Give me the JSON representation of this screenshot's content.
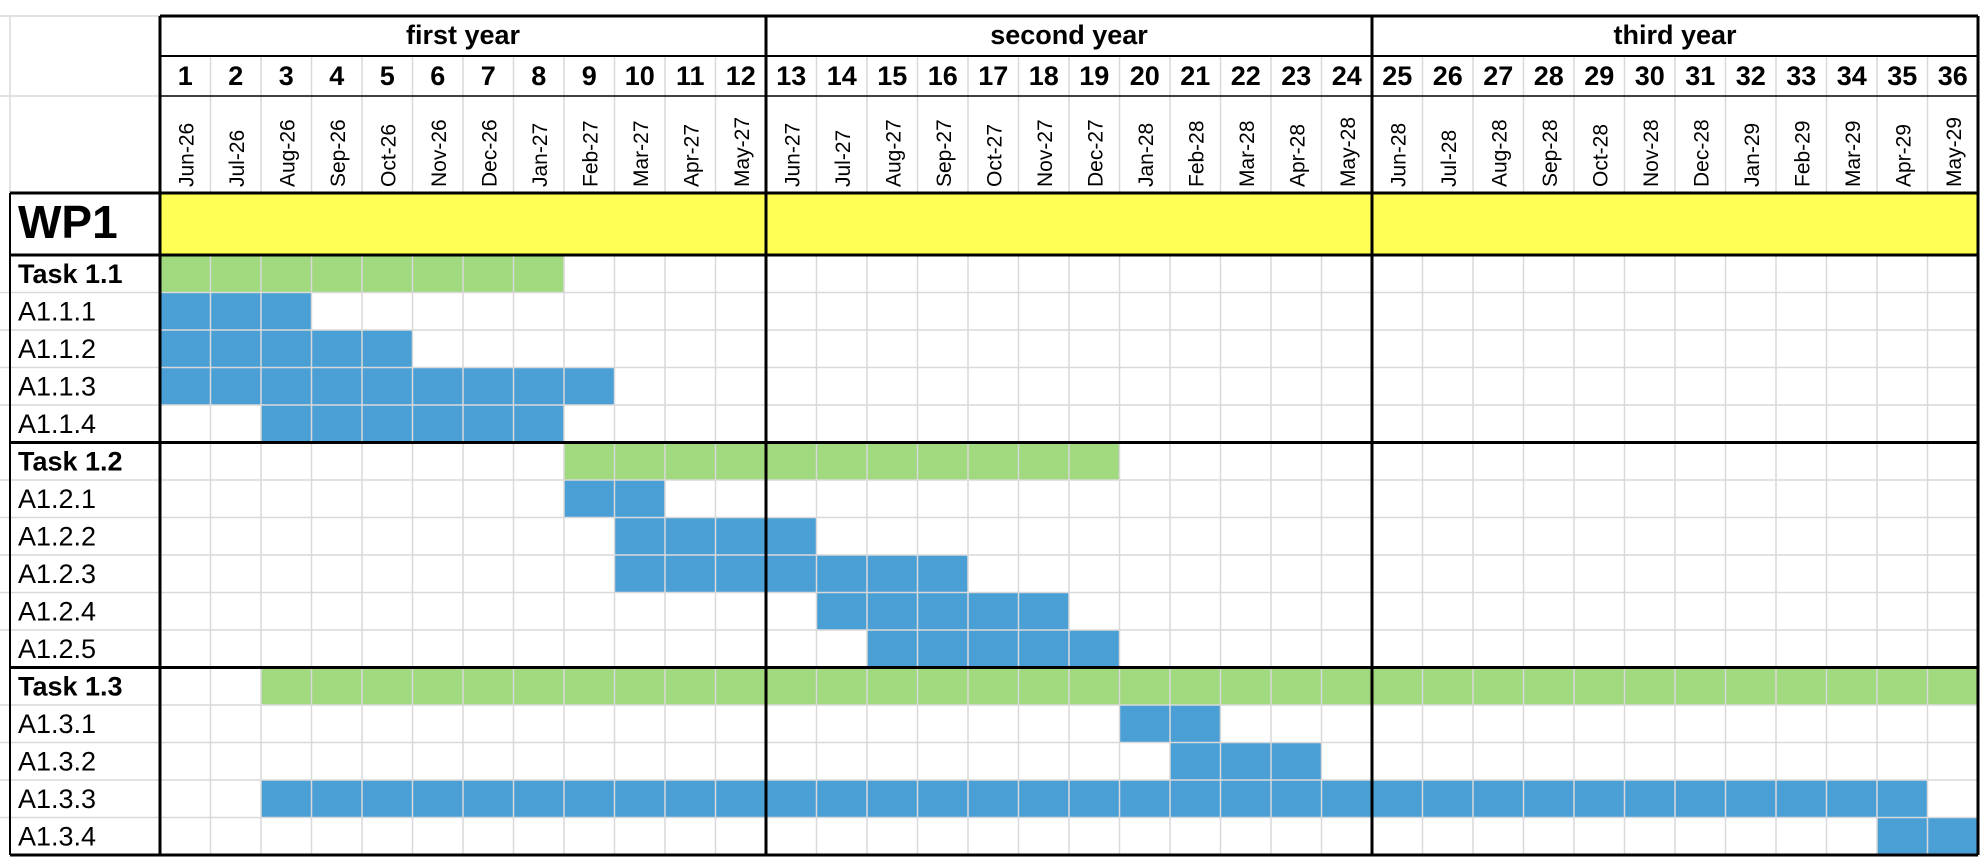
{
  "chart_data": {
    "type": "gantt",
    "years": [
      "first year",
      "second year",
      "third year"
    ],
    "month_numbers": [
      "1",
      "2",
      "3",
      "4",
      "5",
      "6",
      "7",
      "8",
      "9",
      "10",
      "11",
      "12",
      "13",
      "14",
      "15",
      "16",
      "17",
      "18",
      "19",
      "20",
      "21",
      "22",
      "23",
      "24",
      "25",
      "26",
      "27",
      "28",
      "29",
      "30",
      "31",
      "32",
      "33",
      "34",
      "35",
      "36"
    ],
    "month_labels": [
      "Jun-26",
      "Jul-26",
      "Aug-26",
      "Sep-26",
      "Oct-26",
      "Nov-26",
      "Dec-26",
      "Jan-27",
      "Feb-27",
      "Mar-27",
      "Apr-27",
      "May-27",
      "Jun-27",
      "Jul-27",
      "Aug-27",
      "Sep-27",
      "Oct-27",
      "Nov-27",
      "Dec-27",
      "Jan-28",
      "Feb-28",
      "Mar-28",
      "Apr-28",
      "May-28",
      "Jun-28",
      "Jul-28",
      "Aug-28",
      "Sep-28",
      "Oct-28",
      "Nov-28",
      "Dec-28",
      "Jan-29",
      "Feb-29",
      "Mar-29",
      "Apr-29",
      "May-29"
    ],
    "work_package": {
      "label": "WP1",
      "start": 1,
      "end": 36,
      "color": "#ffff55"
    },
    "groups": [
      {
        "task": {
          "label": "Task 1.1",
          "start": 1,
          "end": 8
        },
        "activities": [
          {
            "label": "A1.1.1",
            "start": 1,
            "end": 3
          },
          {
            "label": "A1.1.2",
            "start": 1,
            "end": 5
          },
          {
            "label": "A1.1.3",
            "start": 1,
            "end": 9
          },
          {
            "label": "A1.1.4",
            "start": 3,
            "end": 8
          }
        ]
      },
      {
        "task": {
          "label": "Task 1.2",
          "start": 9,
          "end": 19
        },
        "activities": [
          {
            "label": "A1.2.1",
            "start": 9,
            "end": 10
          },
          {
            "label": "A1.2.2",
            "start": 10,
            "end": 13
          },
          {
            "label": "A1.2.3",
            "start": 10,
            "end": 16
          },
          {
            "label": "A1.2.4",
            "start": 14,
            "end": 18
          },
          {
            "label": "A1.2.5",
            "start": 15,
            "end": 19
          }
        ]
      },
      {
        "task": {
          "label": "Task 1.3",
          "start": 3,
          "end": 36
        },
        "activities": [
          {
            "label": "A1.3.1",
            "start": 20,
            "end": 21
          },
          {
            "label": "A1.3.2",
            "start": 21,
            "end": 23
          },
          {
            "label": "A1.3.3",
            "start": 3,
            "end": 35
          },
          {
            "label": "A1.3.4",
            "start": 35,
            "end": 36
          }
        ]
      }
    ],
    "colors": {
      "work_package": "#ffff55",
      "task": "#a0d97e",
      "activity": "#4a9fd4",
      "grid": "#d9d9d9",
      "border": "#000000"
    }
  }
}
